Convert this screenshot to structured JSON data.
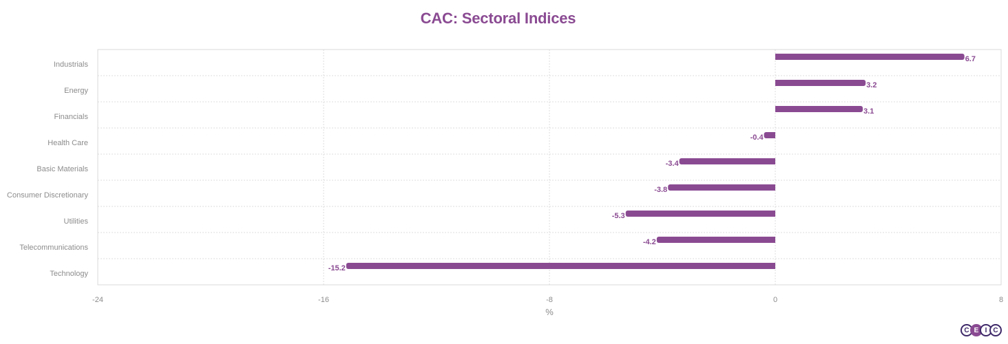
{
  "chart_data": {
    "type": "bar",
    "orientation": "horizontal",
    "title": "CAC: Sectoral Indices",
    "xlabel": "%",
    "ylabel": "",
    "categories": [
      "Industrials",
      "Energy",
      "Financials",
      "Health Care",
      "Basic Materials",
      "Consumer Discretionary",
      "Utilities",
      "Telecommunications",
      "Technology"
    ],
    "values": [
      6.7,
      3.2,
      3.1,
      -0.4,
      -3.4,
      -3.8,
      -5.3,
      -4.2,
      -15.2
    ],
    "data_labels": [
      "6.7",
      "3.2",
      "3.1",
      "-0.4",
      "-3.4",
      "-3.8",
      "-5.3",
      "-4.2",
      "-15.2"
    ],
    "xlim": [
      -24,
      8
    ],
    "x_ticks": [
      -24,
      -16,
      -8,
      0,
      8
    ],
    "x_tick_labels": [
      "-24",
      "-16",
      "-8",
      "0",
      "8"
    ],
    "grid": true,
    "legend": "none",
    "bar_color": "#8a4a92",
    "title_color": "#8a4a92"
  },
  "logo": {
    "letters": [
      "C",
      "E",
      "I",
      "C"
    ],
    "primary_color": "#3d2868",
    "accent_color": "#8a4a92"
  }
}
